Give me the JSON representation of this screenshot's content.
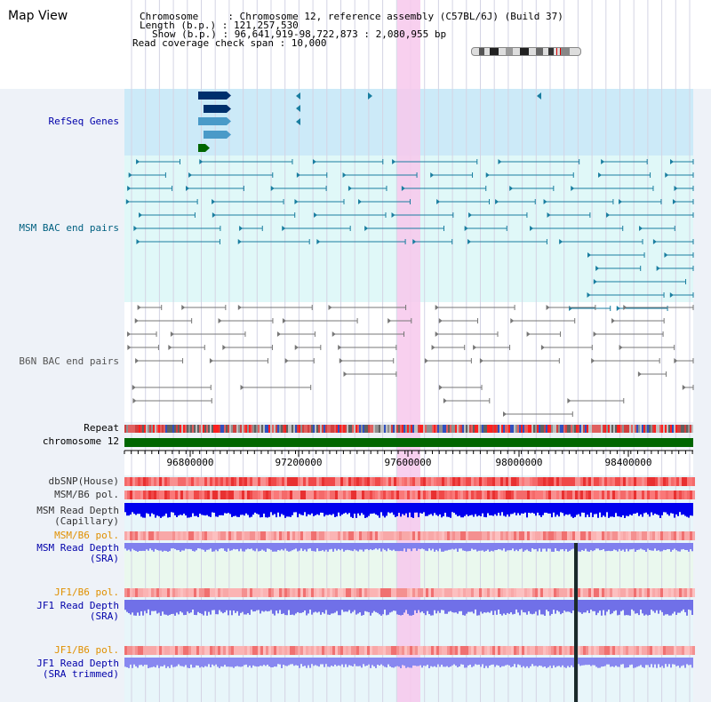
{
  "header": {
    "title": "Map View",
    "lines": [
      "Chromosome     : Chromosome 12, reference assembly (C57BL/6J) (Build 37)",
      "Length (b.p.) : 121,257,530",
      "Show (b.p.) : 96,641,919-98,722,873 : 2,080,955 bp",
      "Read coverage check span : 10,000"
    ]
  },
  "tracks": {
    "refseq": "RefSeq Genes",
    "msm_bac": "MSM BAC end pairs",
    "b6n_bac": "B6N BAC end pairs",
    "repeat": "Repeat",
    "chromosome": "chromosome 12",
    "dbsnp": "dbSNP(House)",
    "msm_b6_pol": "MSM/B6 pol.",
    "msm_depth_cap": "MSM Read Depth\n(Capillary)",
    "msm_b6_pol2": "MSM/B6 pol.",
    "msm_depth_sra": "MSM Read Depth\n(SRA)",
    "jf1_b6_pol": "JF1/B6 pol.",
    "jf1_depth_sra": "JF1 Read Depth\n(SRA)",
    "jf1_b6_pol2": "JF1/B6 pol.",
    "jf1_depth_trim": "JF1 Read Depth\n(SRA trimmed)"
  },
  "axis": {
    "ticks": [
      "96800000",
      "97200000",
      "97600000",
      "98000000",
      "98400000"
    ]
  },
  "colors": {
    "highlight": "#f7c8ec",
    "refseq_bg": "#cceaf8",
    "msm_bg": "#e0f8f8",
    "chrom_bar": "#006600",
    "gene_dark": "#002f6c",
    "gene_light": "#4a9ac8",
    "msm_line": "#1a7ea0",
    "b6n_line": "#777777",
    "depth_blue": "#0000ee",
    "depth_lavender": "#8080ee"
  }
}
